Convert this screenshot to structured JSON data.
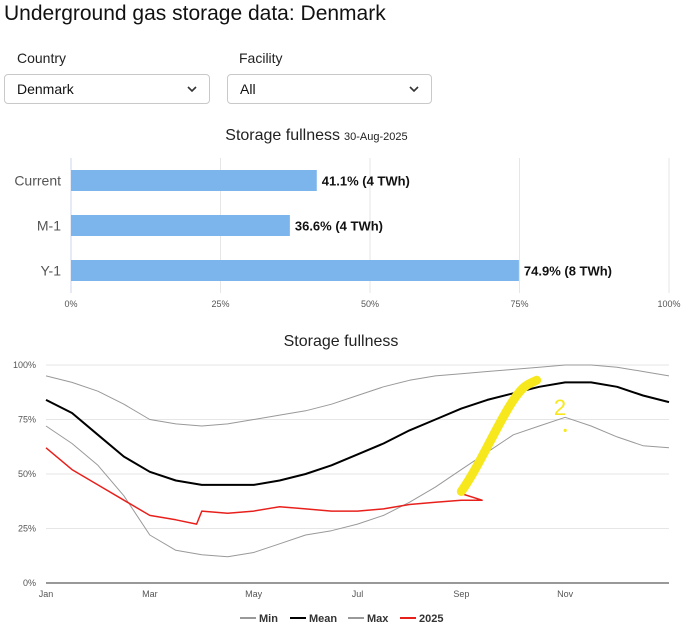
{
  "page": {
    "title": "Underground gas storage data: Denmark"
  },
  "filters": {
    "country": {
      "label": "Country",
      "value": "Denmark"
    },
    "facility": {
      "label": "Facility",
      "value": "All"
    }
  },
  "colors": {
    "bar": "#7cb5ec",
    "min": "#999999",
    "mean": "#000000",
    "max": "#999999",
    "y2025": "#e8201c",
    "highlight": "#f7e81e"
  },
  "annotation": {
    "text": "2",
    "color": "#f7e81e"
  },
  "chart_data": [
    {
      "type": "bar",
      "orientation": "horizontal",
      "title": "Storage fullness",
      "subtitle": "30-Aug-2025",
      "categories": [
        "Current",
        "M-1",
        "Y-1"
      ],
      "values": [
        41.1,
        36.6,
        74.9
      ],
      "data_labels": [
        "41.1% (4 TWh)",
        "36.6% (4 TWh)",
        "74.9% (8 TWh)"
      ],
      "xlim": [
        0,
        100
      ],
      "xticks": [
        "0%",
        "25%",
        "50%",
        "75%",
        "100%"
      ],
      "grid": true,
      "legend": "none"
    },
    {
      "type": "line",
      "title": "Storage fullness",
      "x_ticks": [
        {
          "label": "Jan",
          "month": 0
        },
        {
          "label": "Mar",
          "month": 2
        },
        {
          "label": "May",
          "month": 4
        },
        {
          "label": "Jul",
          "month": 6
        },
        {
          "label": "Sep",
          "month": 8
        },
        {
          "label": "Nov",
          "month": 10
        }
      ],
      "y_ticks": [
        "0%",
        "25%",
        "50%",
        "75%",
        "100%"
      ],
      "ylim": [
        0,
        100
      ],
      "legend": "bottom",
      "series": [
        {
          "name": "Min",
          "color": "#999999",
          "width": 1,
          "x": [
            0,
            0.5,
            1,
            1.5,
            2,
            2.5,
            3,
            3.5,
            4,
            4.5,
            5,
            5.5,
            6,
            6.5,
            7,
            7.5,
            8,
            8.5,
            9,
            9.5,
            10,
            10.5,
            11,
            11.5,
            12
          ],
          "values": [
            72,
            64,
            54,
            40,
            22,
            15,
            13,
            12,
            14,
            18,
            22,
            24,
            27,
            31,
            37,
            44,
            52,
            60,
            68,
            72,
            76,
            72,
            67,
            63,
            62
          ]
        },
        {
          "name": "Mean",
          "color": "#000000",
          "width": 2,
          "x": [
            0,
            0.5,
            1,
            1.5,
            2,
            2.5,
            3,
            3.5,
            4,
            4.5,
            5,
            5.5,
            6,
            6.5,
            7,
            7.5,
            8,
            8.5,
            9,
            9.5,
            10,
            10.5,
            11,
            11.5,
            12
          ],
          "values": [
            84,
            78,
            68,
            58,
            51,
            47,
            45,
            45,
            45,
            47,
            50,
            54,
            59,
            64,
            70,
            75,
            80,
            84,
            87,
            90,
            92,
            92,
            90,
            86,
            83
          ]
        },
        {
          "name": "Max",
          "color": "#999999",
          "width": 1,
          "x": [
            0,
            0.5,
            1,
            1.5,
            2,
            2.5,
            3,
            3.5,
            4,
            4.5,
            5,
            5.5,
            6,
            6.5,
            7,
            7.5,
            8,
            8.5,
            9,
            9.5,
            10,
            10.5,
            11,
            11.5,
            12
          ],
          "values": [
            95,
            92,
            88,
            82,
            75,
            73,
            72,
            73,
            75,
            77,
            79,
            82,
            86,
            90,
            93,
            95,
            96,
            97,
            98,
            99,
            100,
            100,
            99,
            97,
            95
          ]
        },
        {
          "name": "2025",
          "color": "#e8201c",
          "width": 1.5,
          "x": [
            0,
            0.5,
            1,
            1.5,
            2,
            2.5,
            2.9,
            3.0,
            3.5,
            4,
            4.5,
            5,
            5.5,
            6,
            6.5,
            7,
            7.5,
            8,
            8.4,
            8
          ],
          "values": [
            62,
            52,
            45,
            38,
            31,
            29,
            27,
            33,
            32,
            33,
            35,
            34,
            33,
            33,
            34,
            36,
            37,
            38,
            38,
            41
          ]
        }
      ]
    }
  ]
}
